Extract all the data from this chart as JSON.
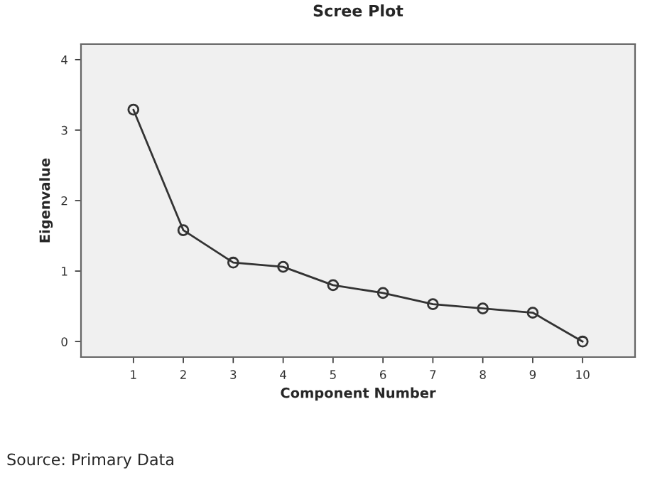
{
  "chart_data": {
    "type": "line",
    "title": "Scree Plot",
    "xlabel": "Component Number",
    "ylabel": "Eigenvalue",
    "x": [
      1,
      2,
      3,
      4,
      5,
      6,
      7,
      8,
      9,
      10
    ],
    "series": [
      {
        "color": "#333333",
        "values": [
          3.29,
          1.58,
          1.12,
          1.06,
          0.8,
          0.69,
          0.53,
          0.47,
          0.41,
          0.0
        ]
      }
    ],
    "xlim": [
      -0.05,
      11.05
    ],
    "xticks": [
      1,
      2,
      3,
      4,
      5,
      6,
      7,
      8,
      9,
      10
    ],
    "ylim": [
      -0.22,
      4.22
    ],
    "yticks": [
      0,
      1,
      2,
      3,
      4
    ],
    "marker": "circle",
    "line_style": "solid",
    "grid": false,
    "legend": false,
    "annotations": [
      "Source: Primary Data"
    ]
  }
}
